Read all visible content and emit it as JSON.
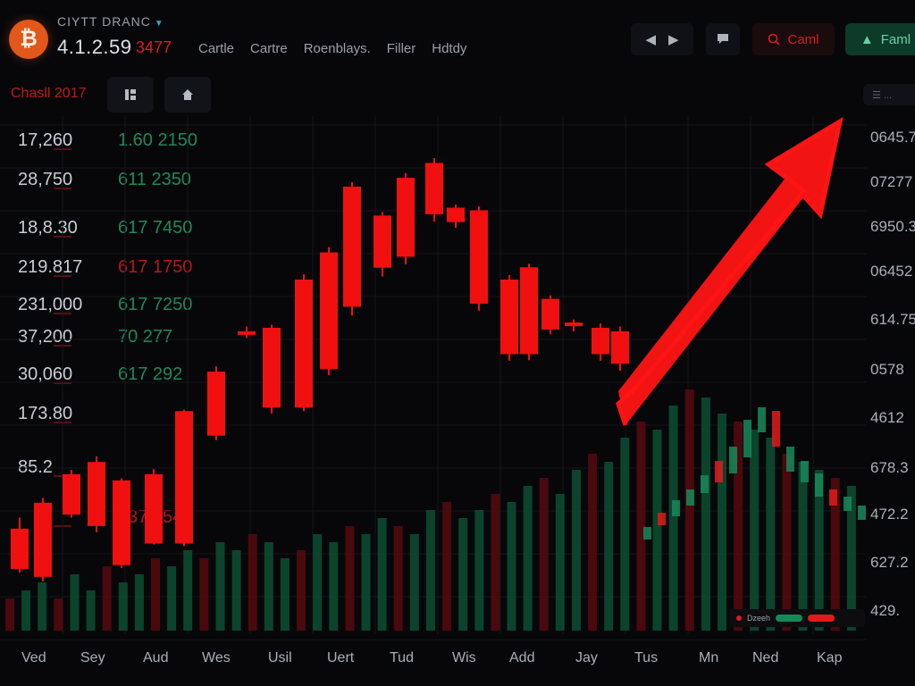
{
  "header": {
    "brand": "CIYTT DRANC",
    "logo_glyph": "₿",
    "price": "4.1.2.59",
    "change": "3477",
    "menu": [
      "Cartle",
      "Cartre",
      "Roenblays.",
      "Filler",
      "Hdtdy"
    ],
    "nav_back": "◀",
    "nav_forward": "▶",
    "chat_icon": "speech-bubble-icon",
    "cancel": "Caml",
    "buy": "Faml"
  },
  "toolbar": {
    "chart_label": "Chasll 2017",
    "tool_1_icon": "layout-icon",
    "tool_2_icon": "home-icon",
    "search_placeholder": "☰ ..."
  },
  "price_list": [
    {
      "a": "17,260",
      "b": "1.60 2150",
      "color": "green"
    },
    {
      "a": "28,750",
      "b": "611 2350",
      "color": "green"
    },
    {
      "a": "18,8.30",
      "b": "617 7450",
      "color": "green"
    },
    {
      "a": "219.817",
      "b": "617 1750",
      "color": "red"
    },
    {
      "a": "231,000",
      "b": "617 7250",
      "color": "green"
    },
    {
      "a": "37,200",
      "b": "70 277",
      "color": "green"
    },
    {
      "a": "30,060",
      "b": "617 292",
      "color": "green"
    },
    {
      "a": "173.80",
      "b": "",
      "color": "green"
    },
    {
      "a": "85.2",
      "b": "",
      "color": "green"
    },
    {
      "a": "",
      "b": "637 2540",
      "color": "red"
    }
  ],
  "right_axis": [
    "0645.7",
    "07277",
    "6950.3",
    "06452",
    "614.75",
    "0578",
    "4612",
    "678.3",
    "472.2",
    "627.2",
    "429."
  ],
  "bottom_axis": [
    "Ved",
    "Sey",
    "Aud",
    "Wes",
    "Usil",
    "Uert",
    "Tud",
    "Wis",
    "Add",
    "Jay",
    "Tus",
    "Mn",
    "Ned",
    "Kap"
  ],
  "legend": {
    "label": "Dzeeh"
  },
  "colors": {
    "bull": "#17885a",
    "bear": "#f01010",
    "arrow": "#ff1414",
    "background": "#07070a"
  },
  "chart_data": {
    "type": "candlestick",
    "title": "",
    "xlabel": "",
    "ylabel": "",
    "ylim": [
      0,
      100
    ],
    "main_series": [
      [
        40.0,
        30.8,
        42.5,
        30.0
      ],
      [
        29.0,
        45.9,
        28.0,
        47.0
      ],
      [
        52.4,
        43.2,
        53.4,
        42.5
      ],
      [
        40.6,
        55.2,
        39.2,
        56.5
      ],
      [
        51.0,
        31.7,
        51.5,
        31.0
      ],
      [
        52.4,
        36.6,
        53.6,
        36.4
      ],
      [
        66.8,
        36.6,
        67.1,
        36.0
      ],
      [
        61.2,
        75.8,
        60.2,
        77.0
      ],
      [
        85.0,
        84.3,
        86.1,
        83.5
      ],
      [
        85.8,
        67.6,
        86.5,
        66.2
      ],
      [
        96.8,
        67.6,
        98.0,
        66.8
      ],
      [
        76.4,
        103.0,
        75.0,
        104.2
      ],
      [
        90.6,
        118.0,
        88.6,
        119.0
      ],
      [
        99.5,
        111.4,
        97.5,
        112.2
      ],
      [
        102.0,
        120.0,
        100.3,
        121.1
      ],
      [
        111.7,
        123.4,
        110.0,
        124.5
      ],
      [
        109.9,
        113.2,
        108.6,
        113.9
      ],
      [
        91.3,
        112.6,
        89.7,
        113.5
      ],
      [
        96.8,
        79.8,
        97.8,
        78.3
      ],
      [
        79.8,
        99.6,
        78.4,
        100.4
      ],
      [
        92.4,
        85.4,
        93.2,
        84.3
      ],
      [
        87.0,
        86.2,
        87.7,
        85.0
      ],
      [
        85.8,
        79.8,
        86.8,
        78.3
      ],
      [
        85.0,
        77.6,
        86.1,
        76.0
      ],
      [
        71.0,
        77.6,
        70.0,
        79.0
      ],
      [
        62.0,
        61.2,
        62.8,
        60.6
      ],
      [
        63.4,
        63.4,
        64.0,
        62.8
      ]
    ],
    "volume_series": [
      4,
      5,
      6,
      4,
      7,
      5,
      8,
      6,
      7,
      9,
      8,
      10,
      9,
      11,
      10,
      12,
      11,
      9,
      10,
      12,
      11,
      13,
      12,
      14,
      13,
      12,
      15,
      16,
      14,
      15,
      17,
      16,
      18,
      19,
      17,
      20,
      22,
      21,
      24,
      26,
      25,
      28,
      30,
      29,
      27,
      26,
      25,
      24,
      22,
      21,
      20,
      19,
      18
    ]
  }
}
